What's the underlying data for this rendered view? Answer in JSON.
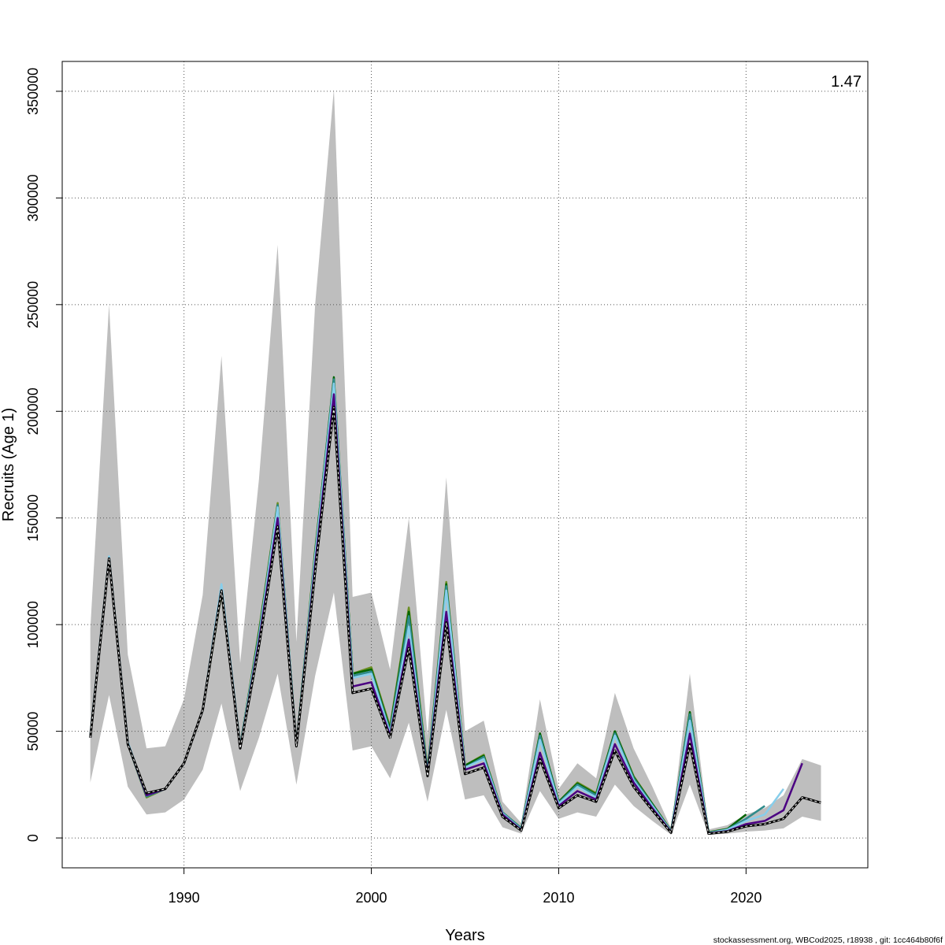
{
  "chart_data": {
    "type": "line",
    "title": "",
    "xlabel": "Years",
    "ylabel": "Recruits (Age 1)",
    "xlim": [
      1983.5,
      2026.5
    ],
    "ylim": [
      -14000,
      364000
    ],
    "x_ticks": [
      1990,
      2000,
      2010,
      2020
    ],
    "y_ticks": [
      0,
      50000,
      100000,
      150000,
      200000,
      250000,
      300000,
      350000
    ],
    "x_tick_labels": [
      "1990",
      "2000",
      "2010",
      "2020"
    ],
    "y_tick_labels": [
      "0",
      "50000",
      "100000",
      "150000",
      "200000",
      "250000",
      "300000",
      "350000"
    ],
    "grid": true,
    "rho": "1.47",
    "footer": "stockassessment.org, WBCod2025, r18938 , git: 1cc464b80f6f",
    "colors": {
      "band": "#bebebe",
      "grid": "#555555",
      "base": "#000000",
      "peels": [
        "#4b0082",
        "#87ceeb",
        "#2e8b8b",
        "#006400",
        "#6b8e23"
      ]
    },
    "band": {
      "x": [
        1985,
        1986,
        1987,
        1988,
        1989,
        1990,
        1991,
        1992,
        1993,
        1994,
        1995,
        1996,
        1997,
        1998,
        1999,
        2000,
        2001,
        2002,
        2003,
        2004,
        2005,
        2006,
        2007,
        2008,
        2009,
        2010,
        2011,
        2012,
        2013,
        2014,
        2015,
        2016,
        2017,
        2018,
        2019,
        2020,
        2021,
        2022,
        2023,
        2024
      ],
      "lower": [
        26000,
        67000,
        24000,
        11000,
        12000,
        18000,
        32000,
        63000,
        22000,
        47000,
        77000,
        25000,
        76000,
        115000,
        41000,
        43000,
        28000,
        54000,
        17000,
        60000,
        18000,
        20000,
        5000,
        2000,
        22000,
        9000,
        12000,
        10000,
        25000,
        15000,
        8000,
        1500,
        25000,
        1500,
        2000,
        3000,
        3500,
        4500,
        10000,
        8000
      ],
      "upper": [
        98000,
        250000,
        86000,
        42000,
        43000,
        65000,
        114000,
        226000,
        82000,
        168000,
        278000,
        92000,
        250000,
        351000,
        113000,
        115000,
        79000,
        150000,
        48000,
        169000,
        50000,
        55000,
        17000,
        7000,
        65000,
        23000,
        35000,
        28000,
        68000,
        42000,
        24000,
        4500,
        77000,
        4000,
        6000,
        11000,
        14000,
        20000,
        37000,
        34000
      ]
    },
    "series": [
      {
        "x": [
          1985,
          1986,
          1987,
          1988,
          1989,
          1990,
          1991,
          1992,
          1993,
          1994,
          1995,
          1996,
          1997,
          1998,
          1999,
          2000,
          2001,
          2002,
          2003,
          2004,
          2005,
          2006,
          2007,
          2008,
          2009,
          2010,
          2011,
          2012,
          2013,
          2014,
          2015,
          2016,
          2017,
          2018,
          2019,
          2020,
          2021,
          2022,
          2023,
          2024
        ],
        "values": [
          47000,
          131000,
          44000,
          21000,
          23000,
          35000,
          60000,
          116000,
          42000,
          90000,
          146000,
          43000,
          125000,
          202000,
          68000,
          70000,
          47000,
          89000,
          29000,
          101000,
          30000,
          33000,
          10000,
          3500,
          37000,
          14000,
          20000,
          17000,
          41000,
          24000,
          13000,
          2500,
          44000,
          2000,
          3000,
          5500,
          6500,
          9000,
          19000,
          16500
        ]
      },
      {
        "x": [
          1985,
          1986,
          1987,
          1988,
          1989,
          1990,
          1991,
          1992,
          1993,
          1994,
          1995,
          1996,
          1997,
          1998,
          1999,
          2000,
          2001,
          2002,
          2003,
          2004,
          2005,
          2006,
          2007,
          2008,
          2009,
          2010,
          2011,
          2012,
          2013,
          2014,
          2015,
          2016,
          2017,
          2018,
          2019,
          2020,
          2021,
          2022,
          2023
        ],
        "values": [
          47000,
          131000,
          44000,
          20000,
          23000,
          35000,
          60000,
          116000,
          42000,
          92000,
          150000,
          43000,
          128000,
          208000,
          71000,
          73000,
          48000,
          93000,
          30000,
          106000,
          32000,
          35000,
          11000,
          3800,
          40000,
          15000,
          22000,
          18000,
          44000,
          26000,
          14000,
          2800,
          49000,
          2200,
          3200,
          6500,
          8000,
          13000,
          35000
        ]
      },
      {
        "x": [
          1985,
          1986,
          1987,
          1988,
          1989,
          1990,
          1991,
          1992,
          1993,
          1994,
          1995,
          1996,
          1997,
          1998,
          1999,
          2000,
          2001,
          2002,
          2003,
          2004,
          2005,
          2006,
          2007,
          2008,
          2009,
          2010,
          2011,
          2012,
          2013,
          2014,
          2015,
          2016,
          2017,
          2018,
          2019,
          2020,
          2021,
          2022
        ],
        "values": [
          48000,
          132000,
          45000,
          20000,
          23000,
          35000,
          60000,
          119000,
          43000,
          94000,
          155000,
          43000,
          132000,
          213000,
          75000,
          77000,
          49000,
          99000,
          29000,
          116000,
          33000,
          37000,
          11500,
          4000,
          46000,
          16000,
          24000,
          19000,
          48000,
          27000,
          15000,
          3000,
          55000,
          2300,
          3800,
          8000,
          11000,
          23000
        ]
      },
      {
        "x": [
          1985,
          1986,
          1987,
          1988,
          1989,
          1990,
          1991,
          1992,
          1993,
          1994,
          1995,
          1996,
          1997,
          1998,
          1999,
          2000,
          2001,
          2002,
          2003,
          2004,
          2005,
          2006,
          2007,
          2008,
          2009,
          2010,
          2011,
          2012,
          2013,
          2014,
          2015,
          2016,
          2017,
          2018,
          2019,
          2020,
          2021
        ],
        "values": [
          47000,
          131000,
          44000,
          19500,
          23000,
          35000,
          60000,
          116000,
          43000,
          95000,
          156000,
          43000,
          133000,
          215000,
          76000,
          78000,
          50000,
          104000,
          31000,
          118000,
          33000,
          38000,
          12000,
          4500,
          48000,
          16500,
          25000,
          20000,
          49000,
          28000,
          15500,
          3200,
          58000,
          2500,
          4000,
          9000,
          15000
        ]
      },
      {
        "x": [
          1985,
          1986,
          1987,
          1988,
          1989,
          1990,
          1991,
          1992,
          1993,
          1994,
          1995,
          1996,
          1997,
          1998,
          1999,
          2000,
          2001,
          2002,
          2003,
          2004,
          2005,
          2006,
          2007,
          2008,
          2009,
          2010,
          2011,
          2012,
          2013,
          2014,
          2015,
          2016,
          2017,
          2018,
          2019,
          2020
        ],
        "values": [
          47500,
          131500,
          44000,
          19500,
          23000,
          35000,
          60000,
          117000,
          43000,
          96000,
          156000,
          43000,
          134000,
          216000,
          77000,
          79000,
          51000,
          106000,
          31000,
          119000,
          34000,
          38500,
          12000,
          4600,
          49000,
          17000,
          25500,
          20500,
          50000,
          28500,
          16000,
          3300,
          59000,
          2600,
          4200,
          11000
        ]
      },
      {
        "x": [
          1985,
          1986,
          1987,
          1988,
          1989,
          1990,
          1991,
          1992,
          1993,
          1994,
          1995,
          1996,
          1997,
          1998,
          1999,
          2000,
          2001,
          2002,
          2003,
          2004,
          2005,
          2006,
          2007,
          2008,
          2009,
          2010,
          2011,
          2012,
          2013,
          2014,
          2015,
          2016,
          2017,
          2018,
          2019
        ],
        "values": [
          47000,
          131000,
          44000,
          19000,
          23000,
          35000,
          60000,
          115000,
          43000,
          97000,
          157000,
          43000,
          135000,
          214000,
          77000,
          80000,
          52000,
          108000,
          32000,
          120000,
          34000,
          39000,
          12000,
          4600,
          49000,
          17000,
          26000,
          21000,
          50000,
          29000,
          16000,
          3400,
          59000,
          2700,
          4300
        ]
      }
    ]
  }
}
